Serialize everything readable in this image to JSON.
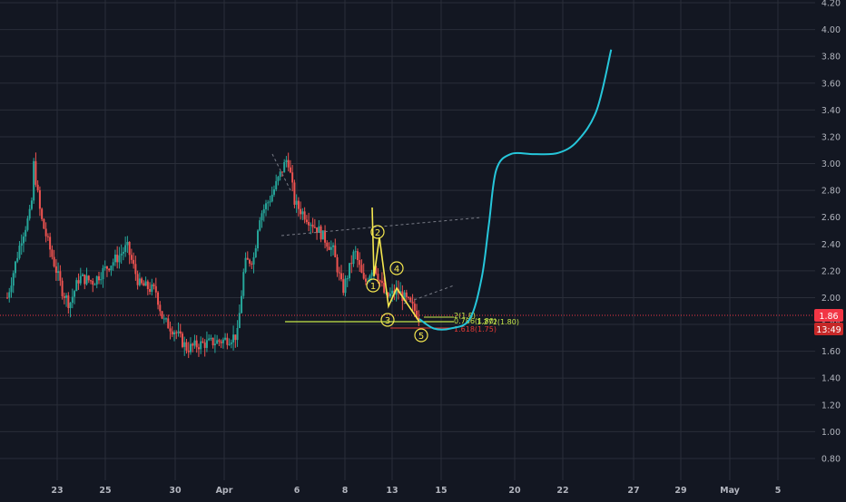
{
  "colors": {
    "background": "#131722",
    "grid": "#2a2e39",
    "candle_up": "#26a69a",
    "candle_down": "#ef5350",
    "projection": "#26c6da",
    "wave": "#f5e74f",
    "support": "#c6e84a",
    "red_level": "#e53935",
    "price_badge": "#f23645"
  },
  "chart_data": {
    "type": "candlestick",
    "y_ticks": [
      "4.20",
      "4.00",
      "3.80",
      "3.60",
      "3.40",
      "3.20",
      "3.00",
      "2.80",
      "2.60",
      "2.40",
      "2.20",
      "2.00",
      "1.80",
      "1.60",
      "1.40",
      "1.20",
      "1.00",
      "0.80"
    ],
    "ylim": [
      0.65,
      4.2
    ],
    "x_ticks": [
      "23",
      "25",
      "30",
      "Apr",
      "6",
      "8",
      "13",
      "15",
      "20",
      "22",
      "27",
      "29",
      "May",
      "5"
    ],
    "grid": true,
    "current_price": "1.86",
    "countdown": "13:49",
    "price_segments": [
      {
        "day": 0,
        "price": 2.0
      },
      {
        "day": 0.6,
        "price": 2.45
      },
      {
        "day": 1.0,
        "price": 2.65
      },
      {
        "day": 1.1,
        "price": 3.0
      },
      {
        "day": 1.4,
        "price": 2.6
      },
      {
        "day": 1.8,
        "price": 2.35
      },
      {
        "day": 2.3,
        "price": 2.05
      },
      {
        "day": 2.6,
        "price": 1.95
      },
      {
        "day": 3.0,
        "price": 2.15
      },
      {
        "day": 3.6,
        "price": 2.12
      },
      {
        "day": 4.0,
        "price": 2.2
      },
      {
        "day": 4.6,
        "price": 2.3
      },
      {
        "day": 5.0,
        "price": 2.38
      },
      {
        "day": 5.5,
        "price": 2.1
      },
      {
        "day": 6.2,
        "price": 2.05
      },
      {
        "day": 6.5,
        "price": 1.83
      },
      {
        "day": 7.0,
        "price": 1.75
      },
      {
        "day": 7.5,
        "price": 1.62
      },
      {
        "day": 8.0,
        "price": 1.65
      },
      {
        "day": 9.0,
        "price": 1.68
      },
      {
        "day": 9.6,
        "price": 1.72
      },
      {
        "day": 9.9,
        "price": 2.25
      },
      {
        "day": 10.3,
        "price": 2.3
      },
      {
        "day": 10.5,
        "price": 2.6
      },
      {
        "day": 11.0,
        "price": 2.75
      },
      {
        "day": 11.7,
        "price": 3.05
      },
      {
        "day": 12.0,
        "price": 2.7
      },
      {
        "day": 13.0,
        "price": 2.5
      },
      {
        "day": 13.6,
        "price": 2.35
      },
      {
        "day": 14.0,
        "price": 2.05
      },
      {
        "day": 14.5,
        "price": 2.35
      },
      {
        "day": 14.9,
        "price": 2.1
      },
      {
        "day": 15.3,
        "price": 2.25
      },
      {
        "day": 15.8,
        "price": 2.0
      },
      {
        "day": 16.3,
        "price": 2.05
      },
      {
        "day": 16.8,
        "price": 1.95
      },
      {
        "day": 17.2,
        "price": 1.86
      }
    ],
    "projection_path": [
      {
        "day": 17.2,
        "price": 1.84
      },
      {
        "day": 17.8,
        "price": 1.77
      },
      {
        "day": 18.5,
        "price": 1.77
      },
      {
        "day": 19.3,
        "price": 1.84
      },
      {
        "day": 19.8,
        "price": 2.15
      },
      {
        "day": 20.1,
        "price": 2.55
      },
      {
        "day": 20.4,
        "price": 2.95
      },
      {
        "day": 21.0,
        "price": 3.07
      },
      {
        "day": 22.0,
        "price": 3.07
      },
      {
        "day": 23.0,
        "price": 3.08
      },
      {
        "day": 23.8,
        "price": 3.17
      },
      {
        "day": 24.6,
        "price": 3.4
      },
      {
        "day": 25.2,
        "price": 3.85
      }
    ],
    "wave_labels": [
      "1",
      "2",
      "3",
      "4",
      "5"
    ],
    "fib_labels": [
      {
        "text": "2(1.8)",
        "color": "#c6e84a"
      },
      {
        "text": "0.786(1.80)",
        "color": "#c6e84a"
      },
      {
        "text": "1.272(1.80)",
        "color": "#c6e84a"
      },
      {
        "text": "1.618(1.75)",
        "color": "#e53935"
      }
    ]
  }
}
